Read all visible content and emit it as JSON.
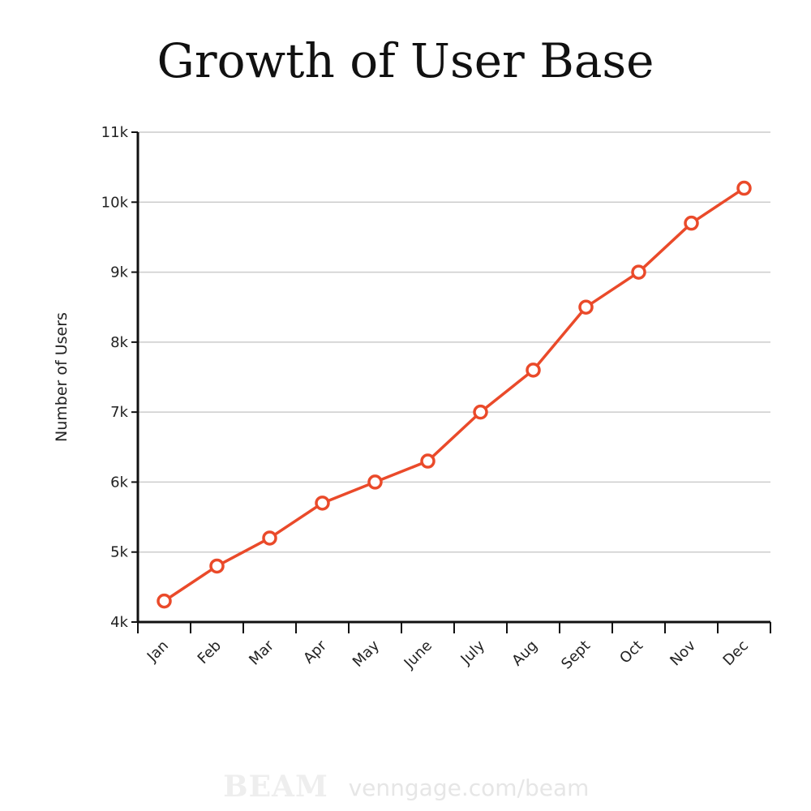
{
  "chart_data": {
    "type": "line",
    "title": "Growth of User Base",
    "xlabel": "",
    "ylabel": "Number of Users",
    "categories": [
      "Jan",
      "Feb",
      "Mar",
      "Apr",
      "May",
      "June",
      "July",
      "Aug",
      "Sept",
      "Oct",
      "Nov",
      "Dec"
    ],
    "series": [
      {
        "name": "Users",
        "values": [
          4300,
          4800,
          5200,
          5700,
          6000,
          6300,
          7000,
          7600,
          8500,
          9000,
          9700,
          10200
        ]
      }
    ],
    "ylim": [
      4000,
      11000
    ],
    "yticks": [
      {
        "value": 4000,
        "label": "4k"
      },
      {
        "value": 5000,
        "label": "5k"
      },
      {
        "value": 6000,
        "label": "6k"
      },
      {
        "value": 7000,
        "label": "7k"
      },
      {
        "value": 8000,
        "label": "8k"
      },
      {
        "value": 9000,
        "label": "9k"
      },
      {
        "value": 10000,
        "label": "10k"
      },
      {
        "value": 11000,
        "label": "11k"
      }
    ],
    "grid": true,
    "line_color": "#ea4a2a"
  },
  "watermark": {
    "logo": "BEAM",
    "url": "venngage.com/beam"
  }
}
